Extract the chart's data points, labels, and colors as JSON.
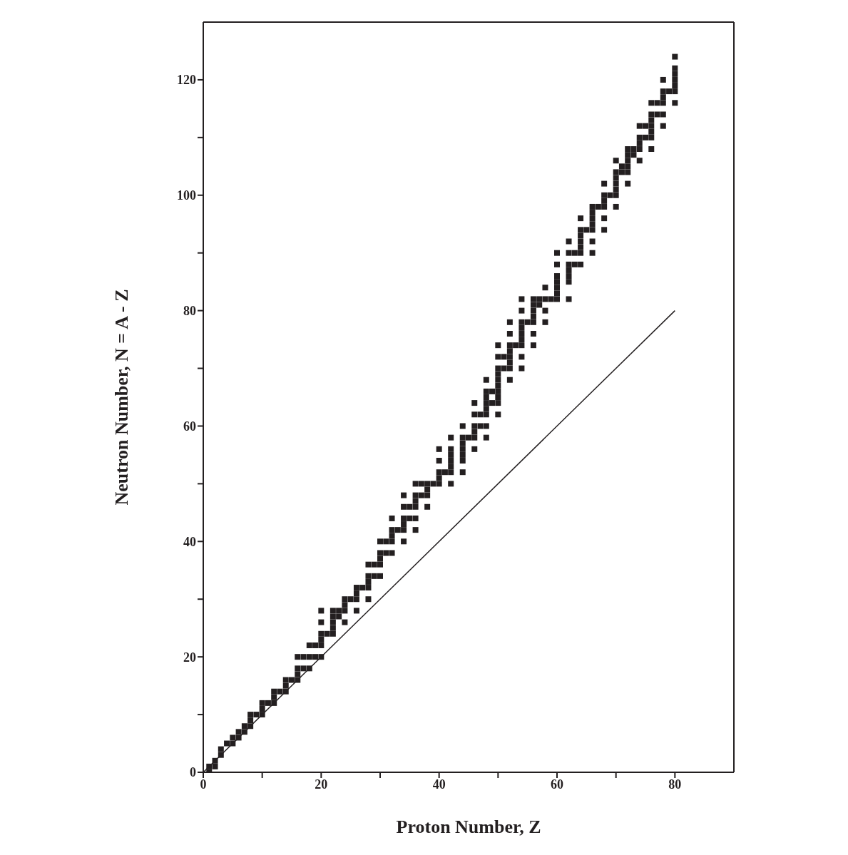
{
  "chart_data": {
    "type": "scatter",
    "xlabel": "Proton Number, Z",
    "ylabel": "Neutron Number, N = A - Z",
    "xlim": [
      0,
      90
    ],
    "ylim": [
      0,
      130
    ],
    "xticks": [
      0,
      {
        "value": 10,
        "label": null
      },
      20,
      {
        "value": 30,
        "label": null
      },
      40,
      {
        "value": 50,
        "label": null
      },
      60,
      {
        "value": 70,
        "label": null
      },
      80
    ],
    "yticks": [
      0,
      {
        "value": 10,
        "label": null
      },
      20,
      {
        "value": 30,
        "label": null
      },
      40,
      {
        "value": 50,
        "label": null
      },
      60,
      {
        "value": 70,
        "label": null
      },
      80,
      {
        "value": 90,
        "label": null
      },
      100,
      {
        "value": 110,
        "label": null
      },
      120
    ],
    "series": [
      {
        "color": "#231f20",
        "marker": "square",
        "x": [
          1,
          1,
          2,
          2,
          3,
          3,
          4,
          5,
          5,
          6,
          6,
          7,
          7,
          8,
          8,
          8,
          9,
          10,
          10,
          10,
          11,
          12,
          12,
          12,
          13,
          14,
          14,
          14,
          15,
          16,
          16,
          16,
          16,
          17,
          17,
          18,
          18,
          18,
          19,
          19,
          20,
          20,
          20,
          20,
          20,
          20,
          21,
          22,
          22,
          22,
          22,
          22,
          23,
          23,
          24,
          24,
          24,
          24,
          25,
          26,
          26,
          26,
          26,
          27,
          28,
          28,
          28,
          28,
          28,
          29,
          29,
          30,
          30,
          30,
          30,
          30,
          31,
          31,
          32,
          32,
          32,
          32,
          32,
          33,
          34,
          34,
          34,
          34,
          34,
          34,
          35,
          35,
          36,
          36,
          36,
          36,
          36,
          36,
          37,
          37,
          38,
          38,
          38,
          38,
          39,
          40,
          40,
          40,
          40,
          40,
          41,
          42,
          42,
          42,
          42,
          42,
          42,
          42,
          44,
          44,
          44,
          44,
          44,
          44,
          44,
          45,
          46,
          46,
          46,
          46,
          46,
          46,
          47,
          47,
          48,
          48,
          48,
          48,
          48,
          48,
          48,
          48,
          49,
          49,
          50,
          50,
          50,
          50,
          50,
          50,
          50,
          50,
          50,
          50,
          51,
          51,
          52,
          52,
          52,
          52,
          52,
          52,
          52,
          52,
          53,
          54,
          54,
          54,
          54,
          54,
          54,
          54,
          54,
          54,
          55,
          56,
          56,
          56,
          56,
          56,
          56,
          56,
          57,
          57,
          58,
          58,
          58,
          58,
          59,
          60,
          60,
          60,
          60,
          60,
          60,
          60,
          62,
          62,
          62,
          62,
          62,
          62,
          62,
          63,
          63,
          64,
          64,
          64,
          64,
          64,
          64,
          64,
          65,
          66,
          66,
          66,
          66,
          66,
          66,
          66,
          67,
          68,
          68,
          68,
          68,
          68,
          68,
          69,
          70,
          70,
          70,
          70,
          70,
          70,
          70,
          71,
          71,
          72,
          72,
          72,
          72,
          72,
          72,
          73,
          73,
          74,
          74,
          74,
          74,
          74,
          75,
          75,
          76,
          76,
          76,
          76,
          76,
          76,
          76,
          77,
          77,
          78,
          78,
          78,
          78,
          78,
          78,
          79,
          80,
          80,
          80,
          80,
          80,
          80,
          80
        ],
        "values": [
          0,
          1,
          1,
          2,
          3,
          4,
          5,
          5,
          6,
          6,
          7,
          7,
          8,
          8,
          9,
          10,
          10,
          10,
          11,
          12,
          12,
          12,
          13,
          14,
          14,
          14,
          15,
          16,
          16,
          16,
          17,
          18,
          20,
          18,
          20,
          18,
          20,
          22,
          20,
          22,
          20,
          22,
          23,
          24,
          26,
          28,
          24,
          24,
          25,
          26,
          27,
          28,
          27,
          28,
          26,
          28,
          29,
          30,
          30,
          28,
          30,
          31,
          32,
          32,
          30,
          32,
          33,
          34,
          36,
          34,
          36,
          34,
          36,
          37,
          38,
          40,
          38,
          40,
          38,
          40,
          41,
          42,
          44,
          42,
          40,
          42,
          43,
          44,
          46,
          48,
          44,
          46,
          42,
          44,
          46,
          47,
          48,
          50,
          48,
          50,
          46,
          48,
          49,
          50,
          50,
          50,
          51,
          52,
          54,
          56,
          52,
          50,
          52,
          53,
          54,
          55,
          56,
          58,
          52,
          54,
          55,
          56,
          57,
          58,
          60,
          58,
          56,
          58,
          59,
          60,
          62,
          64,
          60,
          62,
          58,
          60,
          62,
          63,
          64,
          65,
          66,
          68,
          64,
          66,
          62,
          64,
          65,
          66,
          67,
          68,
          69,
          70,
          72,
          74,
          70,
          72,
          68,
          70,
          71,
          72,
          73,
          74,
          76,
          78,
          74,
          70,
          72,
          74,
          75,
          76,
          77,
          78,
          80,
          82,
          78,
          74,
          76,
          78,
          79,
          80,
          81,
          82,
          81,
          82,
          78,
          80,
          82,
          84,
          82,
          82,
          83,
          84,
          85,
          86,
          88,
          90,
          82,
          85,
          86,
          87,
          88,
          90,
          92,
          88,
          90,
          88,
          90,
          91,
          92,
          93,
          94,
          96,
          94,
          90,
          92,
          94,
          95,
          96,
          97,
          98,
          98,
          94,
          96,
          98,
          99,
          100,
          102,
          100,
          98,
          100,
          101,
          102,
          103,
          104,
          106,
          104,
          105,
          102,
          104,
          105,
          106,
          107,
          108,
          107,
          108,
          106,
          108,
          109,
          110,
          112,
          110,
          112,
          108,
          110,
          111,
          112,
          113,
          114,
          116,
          114,
          116,
          112,
          114,
          116,
          117,
          118,
          120,
          118,
          116,
          118,
          119,
          120,
          121,
          122,
          124
        ]
      },
      {
        "type": "line",
        "color": "#231f20",
        "line_style": "solid",
        "x": [
          0,
          80
        ],
        "values": [
          0,
          80
        ]
      }
    ]
  }
}
